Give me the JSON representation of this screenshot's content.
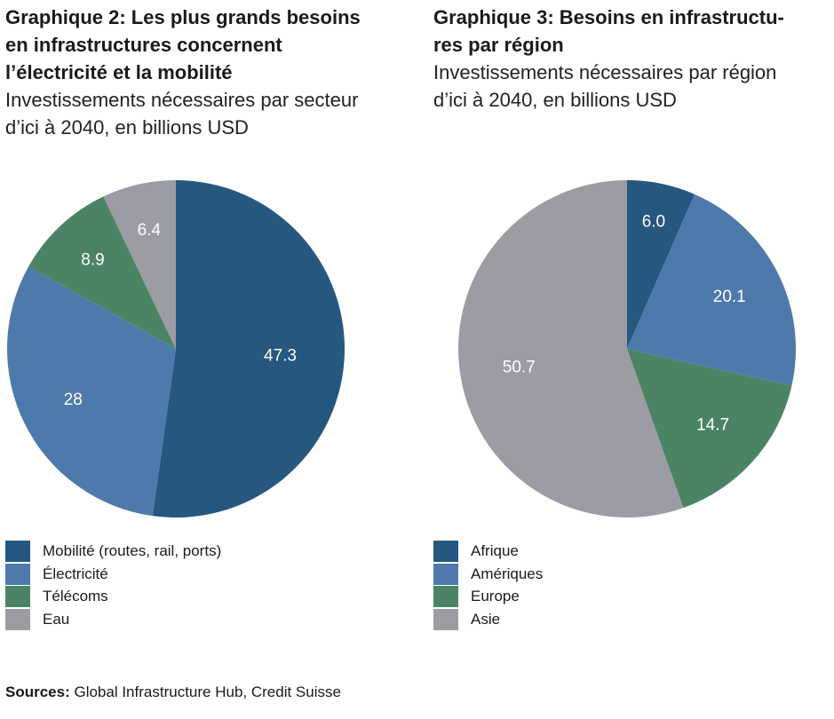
{
  "charts": [
    {
      "title": "Graphique 2: Les plus grands besoins\nen infrastructures concernent\nl’électricité et la mobilité",
      "subtitle": "Investissements nécessaires par secteur\nd’ici à 2040, en billions USD"
    },
    {
      "title": "Graphique 3: Besoins en infrastructu-\nres par région",
      "subtitle": "Investissements nécessaires par région\nd’ici à 2040, en billions USD"
    }
  ],
  "chart_data": [
    {
      "type": "pie",
      "title": "Graphique 2: Les plus grands besoins en infrastructures concernent l’électricité et la mobilité",
      "subtitle": "Investissements nécessaires par secteur d’ici à 2040, en billions USD",
      "categories": [
        "Mobilité (routes, rail, ports)",
        "Électricité",
        "Télécoms",
        "Eau"
      ],
      "values": [
        47.3,
        28,
        8.9,
        6.4
      ],
      "labels": [
        "47.3",
        "28",
        "8.9",
        "6.4"
      ],
      "colors": [
        "#26577f",
        "#4e7aab",
        "#4b8464",
        "#9c9ca4"
      ],
      "legend": "bottom-left"
    },
    {
      "type": "pie",
      "title": "Graphique 3: Besoins en infrastructures par région",
      "subtitle": "Investissements nécessaires par région d’ici à 2040, en billions USD",
      "categories": [
        "Afrique",
        "Amériques",
        "Europe",
        "Asie"
      ],
      "values": [
        6.0,
        20.1,
        14.7,
        50.7
      ],
      "labels": [
        "6.0",
        "20.1",
        "14.7",
        "50.7"
      ],
      "colors": [
        "#26577f",
        "#4e7aab",
        "#4b8464",
        "#9c9ca4"
      ],
      "legend": "bottom-left"
    }
  ],
  "footer": {
    "sources_label": "Sources:",
    "sources_text": " Global Infrastructure Hub, Credit Suisse"
  }
}
